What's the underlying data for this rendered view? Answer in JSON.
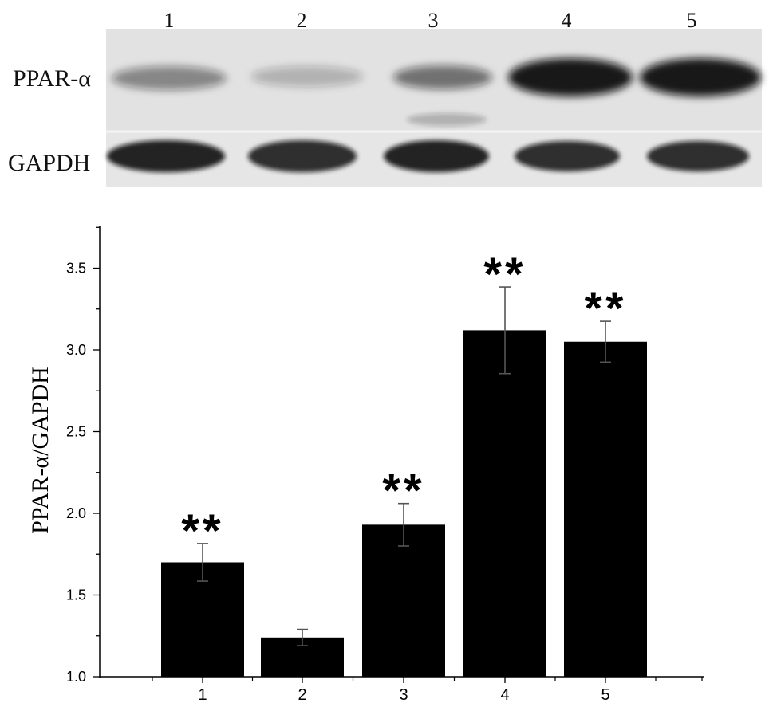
{
  "blot": {
    "lane_labels": [
      "1",
      "2",
      "3",
      "4",
      "5"
    ],
    "row_labels": [
      "PPAR-α",
      "GAPDH"
    ],
    "band_intensity": {
      "PPAR-α": [
        0.45,
        0.25,
        0.55,
        0.95,
        0.95
      ],
      "GAPDH": [
        0.9,
        0.85,
        0.9,
        0.85,
        0.85
      ]
    }
  },
  "chart_data": {
    "type": "bar",
    "categories": [
      "1",
      "2",
      "3",
      "4",
      "5"
    ],
    "values": [
      1.7,
      1.24,
      1.93,
      3.12,
      3.05
    ],
    "errors": [
      0.115,
      0.05,
      0.13,
      0.265,
      0.125
    ],
    "annotations": [
      "**",
      "",
      "**",
      "**",
      "**"
    ],
    "title": "",
    "xlabel": "",
    "ylabel": "PPAR-α/GAPDH",
    "ylim": [
      1.0,
      3.75
    ],
    "yticks": [
      "1.0",
      "1.5",
      "2.0",
      "2.5",
      "3.0",
      "3.5"
    ],
    "grid": false,
    "bar_color": "#000000",
    "error_color": "#555555"
  }
}
